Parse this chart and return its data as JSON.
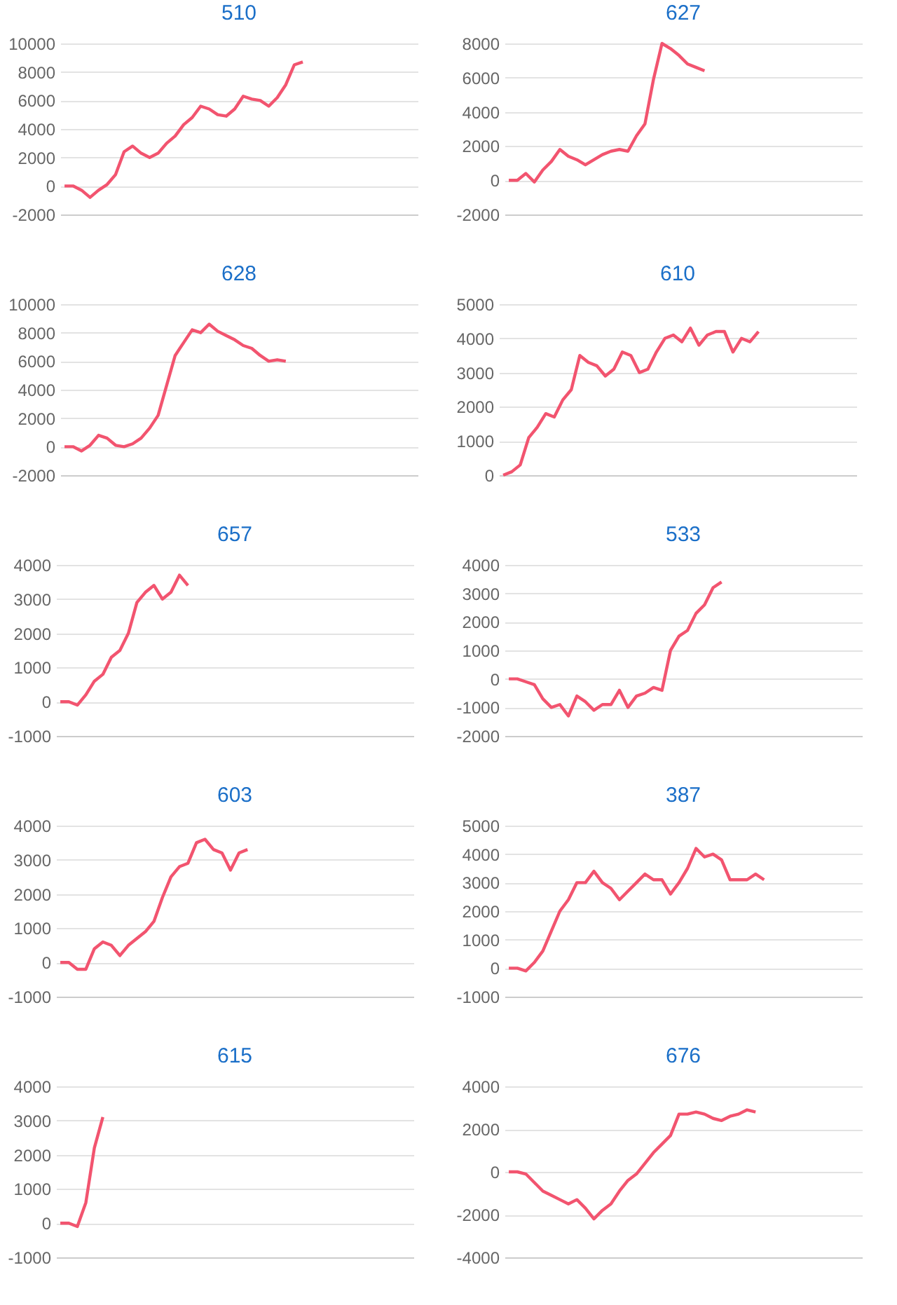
{
  "chart_data": [
    {
      "type": "line",
      "title": "510",
      "categories": [
        null,
        null,
        null,
        null,
        null,
        null,
        null,
        null,
        null,
        null,
        null,
        null,
        null,
        null,
        null,
        null,
        null,
        null,
        null,
        null,
        null,
        null,
        null,
        null,
        null,
        null,
        null,
        null,
        null,
        null,
        null,
        null,
        null,
        null,
        null,
        null,
        null,
        null,
        null,
        null,
        null,
        null
      ],
      "series": [
        {
          "color": "#f2546f",
          "values": [
            0,
            0,
            -300,
            -800,
            -300,
            100,
            800,
            2400,
            2800,
            2300,
            2000,
            2300,
            3000,
            3500,
            4300,
            4800,
            5600,
            5400,
            5000,
            4900,
            5400,
            6300,
            6100,
            6000,
            5600,
            6200,
            7100,
            8500,
            8700,
            null,
            null,
            null,
            null,
            null,
            null,
            null,
            null,
            null,
            null,
            null,
            null,
            null
          ]
        }
      ],
      "ylim": [
        -2000,
        10000
      ],
      "yticks": [
        -2000,
        0,
        2000,
        4000,
        6000,
        8000,
        10000
      ],
      "grid": "y",
      "tick_labels": "y",
      "marker": "none",
      "legend": false
    },
    {
      "type": "line",
      "title": "627",
      "categories": [
        null,
        null,
        null,
        null,
        null,
        null,
        null,
        null,
        null,
        null,
        null,
        null,
        null,
        null,
        null,
        null,
        null,
        null,
        null,
        null,
        null,
        null,
        null,
        null,
        null,
        null,
        null,
        null,
        null,
        null,
        null,
        null,
        null,
        null,
        null,
        null,
        null,
        null,
        null,
        null,
        null,
        null
      ],
      "series": [
        {
          "color": "#f2546f",
          "values": [
            0,
            0,
            400,
            -100,
            600,
            1100,
            1800,
            1400,
            1200,
            900,
            1200,
            1500,
            1700,
            1800,
            1700,
            2600,
            3300,
            5900,
            8000,
            7700,
            7300,
            6800,
            6600,
            6400,
            null,
            null,
            null,
            null,
            null,
            null,
            null,
            null,
            null,
            null,
            null,
            null,
            null,
            null,
            null,
            null,
            null,
            null
          ]
        }
      ],
      "ylim": [
        -2000,
        8000
      ],
      "yticks": [
        -2000,
        0,
        2000,
        4000,
        6000,
        8000
      ],
      "grid": "y",
      "tick_labels": "y",
      "marker": "none",
      "legend": false
    },
    {
      "type": "line",
      "title": "628",
      "categories": [
        null,
        null,
        null,
        null,
        null,
        null,
        null,
        null,
        null,
        null,
        null,
        null,
        null,
        null,
        null,
        null,
        null,
        null,
        null,
        null,
        null,
        null,
        null,
        null,
        null,
        null,
        null,
        null,
        null,
        null,
        null,
        null,
        null,
        null,
        null,
        null,
        null,
        null,
        null,
        null,
        null,
        null
      ],
      "series": [
        {
          "color": "#f2546f",
          "values": [
            0,
            0,
            -300,
            100,
            800,
            600,
            100,
            0,
            200,
            600,
            1300,
            2200,
            4300,
            6400,
            7300,
            8200,
            8000,
            8600,
            8100,
            7800,
            7500,
            7100,
            6900,
            6400,
            6000,
            6100,
            6000,
            null,
            null,
            null,
            null,
            null,
            null,
            null,
            null,
            null,
            null,
            null,
            null,
            null,
            null,
            null
          ]
        }
      ],
      "ylim": [
        -2000,
        10000
      ],
      "yticks": [
        -2000,
        0,
        2000,
        4000,
        6000,
        8000,
        10000
      ],
      "grid": "y",
      "tick_labels": "y",
      "marker": "none",
      "legend": false
    },
    {
      "type": "line",
      "title": "610",
      "categories": [
        null,
        null,
        null,
        null,
        null,
        null,
        null,
        null,
        null,
        null,
        null,
        null,
        null,
        null,
        null,
        null,
        null,
        null,
        null,
        null,
        null,
        null,
        null,
        null,
        null,
        null,
        null,
        null,
        null,
        null,
        null,
        null,
        null,
        null,
        null,
        null,
        null,
        null,
        null,
        null,
        null,
        null
      ],
      "series": [
        {
          "color": "#f2546f",
          "values": [
            0,
            100,
            300,
            1100,
            1400,
            1800,
            1700,
            2200,
            2500,
            3500,
            3300,
            3200,
            2900,
            3100,
            3600,
            3500,
            3000,
            3100,
            3600,
            4000,
            4100,
            3900,
            4300,
            3800,
            4100,
            4200,
            4200,
            3600,
            4000,
            3900,
            4200,
            null,
            null,
            null,
            null,
            null,
            null,
            null,
            null,
            null,
            null,
            null
          ]
        }
      ],
      "ylim": [
        0,
        5000
      ],
      "yticks": [
        0,
        1000,
        2000,
        3000,
        4000,
        5000
      ],
      "grid": "y",
      "tick_labels": "y",
      "marker": "none",
      "legend": false
    },
    {
      "type": "line",
      "title": "657",
      "categories": [
        null,
        null,
        null,
        null,
        null,
        null,
        null,
        null,
        null,
        null,
        null,
        null,
        null,
        null,
        null,
        null,
        null,
        null,
        null,
        null,
        null,
        null,
        null,
        null,
        null,
        null,
        null,
        null,
        null,
        null,
        null,
        null,
        null,
        null,
        null,
        null,
        null,
        null,
        null,
        null,
        null,
        null
      ],
      "series": [
        {
          "color": "#f2546f",
          "values": [
            0,
            0,
            -100,
            200,
            600,
            800,
            1300,
            1500,
            2000,
            2900,
            3200,
            3400,
            3000,
            3200,
            3700,
            3400,
            null,
            null,
            null,
            null,
            null,
            null,
            null,
            null,
            null,
            null,
            null,
            null,
            null,
            null,
            null,
            null,
            null,
            null,
            null,
            null,
            null,
            null,
            null,
            null,
            null,
            null
          ]
        }
      ],
      "ylim": [
        -1000,
        4000
      ],
      "yticks": [
        -1000,
        0,
        1000,
        2000,
        3000,
        4000
      ],
      "grid": "y",
      "tick_labels": "y",
      "marker": "none",
      "legend": false
    },
    {
      "type": "line",
      "title": "533",
      "categories": [
        null,
        null,
        null,
        null,
        null,
        null,
        null,
        null,
        null,
        null,
        null,
        null,
        null,
        null,
        null,
        null,
        null,
        null,
        null,
        null,
        null,
        null,
        null,
        null,
        null,
        null,
        null,
        null,
        null,
        null,
        null,
        null,
        null,
        null,
        null,
        null,
        null,
        null,
        null,
        null,
        null,
        null
      ],
      "series": [
        {
          "color": "#f2546f",
          "values": [
            0,
            0,
            -100,
            -200,
            -700,
            -1000,
            -900,
            -1300,
            -600,
            -800,
            -1100,
            -900,
            -900,
            -400,
            -1000,
            -600,
            -500,
            -300,
            -400,
            1000,
            1500,
            1700,
            2300,
            2600,
            3200,
            3400,
            null,
            null,
            null,
            null,
            null,
            null,
            null,
            null,
            null,
            null,
            null,
            null,
            null,
            null,
            null,
            null
          ]
        }
      ],
      "ylim": [
        -2000,
        4000
      ],
      "yticks": [
        -2000,
        -1000,
        0,
        1000,
        2000,
        3000,
        4000
      ],
      "grid": "y",
      "tick_labels": "y",
      "marker": "none",
      "legend": false
    },
    {
      "type": "line",
      "title": "603",
      "categories": [
        null,
        null,
        null,
        null,
        null,
        null,
        null,
        null,
        null,
        null,
        null,
        null,
        null,
        null,
        null,
        null,
        null,
        null,
        null,
        null,
        null,
        null,
        null,
        null,
        null,
        null,
        null,
        null,
        null,
        null,
        null,
        null,
        null,
        null,
        null,
        null,
        null,
        null,
        null,
        null,
        null,
        null
      ],
      "series": [
        {
          "color": "#f2546f",
          "values": [
            0,
            0,
            -200,
            -200,
            400,
            600,
            500,
            200,
            500,
            700,
            900,
            1200,
            1900,
            2500,
            2800,
            2900,
            3500,
            3600,
            3300,
            3200,
            2700,
            3200,
            3300,
            null,
            null,
            null,
            null,
            null,
            null,
            null,
            null,
            null,
            null,
            null,
            null,
            null,
            null,
            null,
            null,
            null,
            null,
            null
          ]
        }
      ],
      "ylim": [
        -1000,
        4000
      ],
      "yticks": [
        -1000,
        0,
        1000,
        2000,
        3000,
        4000
      ],
      "grid": "y",
      "tick_labels": "y",
      "marker": "none",
      "legend": false
    },
    {
      "type": "line",
      "title": "387",
      "categories": [
        null,
        null,
        null,
        null,
        null,
        null,
        null,
        null,
        null,
        null,
        null,
        null,
        null,
        null,
        null,
        null,
        null,
        null,
        null,
        null,
        null,
        null,
        null,
        null,
        null,
        null,
        null,
        null,
        null,
        null,
        null,
        null,
        null,
        null,
        null,
        null,
        null,
        null,
        null,
        null,
        null,
        null
      ],
      "series": [
        {
          "color": "#f2546f",
          "values": [
            0,
            0,
            -100,
            200,
            600,
            1300,
            2000,
            2400,
            3000,
            3000,
            3400,
            3000,
            2800,
            2400,
            2700,
            3000,
            3300,
            3100,
            3100,
            2600,
            3000,
            3500,
            4200,
            3900,
            4000,
            3800,
            3100,
            3100,
            3100,
            3300,
            3100,
            null,
            null,
            null,
            null,
            null,
            null,
            null,
            null,
            null,
            null,
            null
          ]
        }
      ],
      "ylim": [
        -1000,
        5000
      ],
      "yticks": [
        -1000,
        0,
        1000,
        2000,
        3000,
        4000,
        5000
      ],
      "grid": "y",
      "tick_labels": "y",
      "marker": "none",
      "legend": false
    },
    {
      "type": "line",
      "title": "615",
      "categories": [
        null,
        null,
        null,
        null,
        null,
        null,
        null,
        null,
        null,
        null,
        null,
        null,
        null,
        null,
        null,
        null,
        null,
        null,
        null,
        null,
        null,
        null,
        null,
        null,
        null,
        null,
        null,
        null,
        null,
        null,
        null,
        null,
        null,
        null,
        null,
        null,
        null,
        null,
        null,
        null,
        null,
        null
      ],
      "series": [
        {
          "color": "#f2546f",
          "values": [
            0,
            0,
            -100,
            600,
            2200,
            3100,
            null,
            null,
            null,
            null,
            null,
            null,
            null,
            null,
            null,
            null,
            null,
            null,
            null,
            null,
            null,
            null,
            null,
            null,
            null,
            null,
            null,
            null,
            null,
            null,
            null,
            null,
            null,
            null,
            null,
            null,
            null,
            null,
            null,
            null,
            null,
            null
          ]
        }
      ],
      "ylim": [
        -1000,
        4000
      ],
      "yticks": [
        -1000,
        0,
        1000,
        2000,
        3000,
        4000
      ],
      "grid": "y",
      "tick_labels": "y",
      "marker": "none",
      "legend": false
    },
    {
      "type": "line",
      "title": "676",
      "categories": [
        null,
        null,
        null,
        null,
        null,
        null,
        null,
        null,
        null,
        null,
        null,
        null,
        null,
        null,
        null,
        null,
        null,
        null,
        null,
        null,
        null,
        null,
        null,
        null,
        null,
        null,
        null,
        null,
        null,
        null,
        null,
        null,
        null,
        null,
        null,
        null,
        null,
        null,
        null,
        null,
        null,
        null
      ],
      "series": [
        {
          "color": "#f2546f",
          "values": [
            0,
            0,
            -100,
            -500,
            -900,
            -1100,
            -1300,
            -1500,
            -1300,
            -1700,
            -2200,
            -1800,
            -1500,
            -900,
            -400,
            -100,
            400,
            900,
            1300,
            1700,
            2700,
            2700,
            2800,
            2700,
            2500,
            2400,
            2600,
            2700,
            2900,
            2800,
            null,
            null,
            null,
            null,
            null,
            null,
            null,
            null,
            null,
            null,
            null,
            null
          ]
        }
      ],
      "ylim": [
        -4000,
        4000
      ],
      "yticks": [
        -4000,
        -2000,
        0,
        2000,
        4000
      ],
      "grid": "y",
      "tick_labels": "y",
      "marker": "none",
      "legend": false
    }
  ]
}
